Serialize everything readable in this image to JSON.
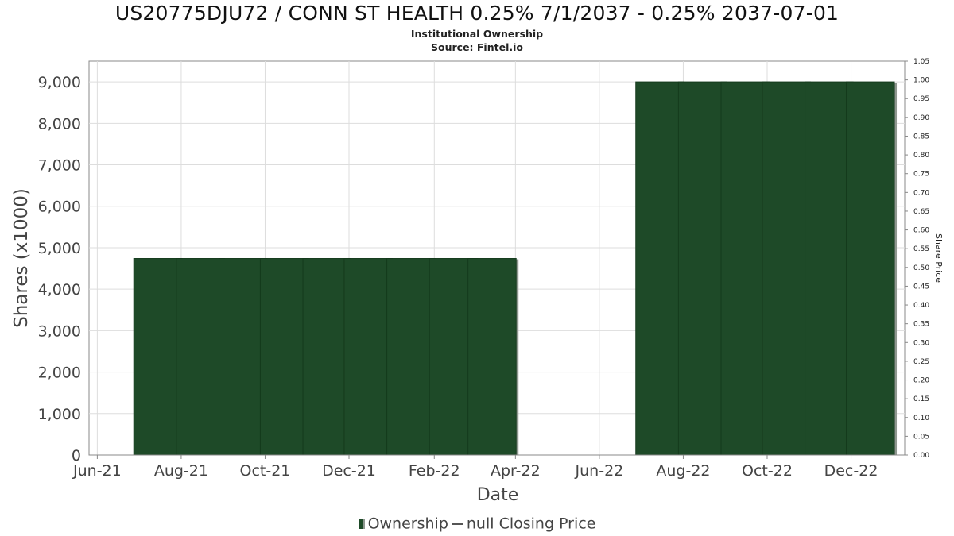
{
  "header": {
    "title": "US20775DJU72 / CONN ST HEALTH 0.25% 7/1/2037 - 0.25% 2037-07-01",
    "subtitle": "Institutional Ownership",
    "source": "Source: Fintel.io"
  },
  "legend": {
    "ownership": "Ownership",
    "price": "null Closing Price"
  },
  "colors": {
    "bar_fill": "#1e4a28",
    "bar_shadow": "#8f9890",
    "grid": "#dddddd",
    "axis": "#888888"
  },
  "chart_data": {
    "type": "bar",
    "xlabel": "Date",
    "ylabel": "Shares (x1000)",
    "y2label": "Share Price",
    "ylim": [
      0,
      9500
    ],
    "y2lim": [
      0,
      1.05
    ],
    "yticks": [
      0,
      1000,
      2000,
      3000,
      4000,
      5000,
      6000,
      7000,
      8000,
      9000
    ],
    "ytick_labels": [
      "0",
      "1,000",
      "2,000",
      "3,000",
      "4,000",
      "5,000",
      "6,000",
      "7,000",
      "8,000",
      "9,000"
    ],
    "y2ticks": [
      "0.00",
      "0.05",
      "0.10",
      "0.15",
      "0.20",
      "0.25",
      "0.30",
      "0.35",
      "0.40",
      "0.45",
      "0.50",
      "0.55",
      "0.60",
      "0.65",
      "0.70",
      "0.75",
      "0.80",
      "0.85",
      "0.90",
      "0.95",
      "1.00",
      "1.05"
    ],
    "xlim": [
      "2021-05-26",
      "2023-01-09"
    ],
    "xticks": [
      {
        "date": "2021-06-01",
        "label": "Jun-21"
      },
      {
        "date": "2021-08-01",
        "label": "Aug-21"
      },
      {
        "date": "2021-10-01",
        "label": "Oct-21"
      },
      {
        "date": "2021-12-01",
        "label": "Dec-21"
      },
      {
        "date": "2022-02-01",
        "label": "Feb-22"
      },
      {
        "date": "2022-04-01",
        "label": "Apr-22"
      },
      {
        "date": "2022-06-01",
        "label": "Jun-22"
      },
      {
        "date": "2022-08-01",
        "label": "Aug-22"
      },
      {
        "date": "2022-10-01",
        "label": "Oct-22"
      },
      {
        "date": "2022-12-01",
        "label": "Dec-22"
      }
    ],
    "grid": true,
    "legend_position": "bottom-center",
    "series": [
      {
        "name": "Ownership",
        "points": [
          {
            "date": "2021-07-15",
            "value": 4740
          },
          {
            "date": "2021-08-15",
            "value": 4740
          },
          {
            "date": "2021-09-15",
            "value": 4740
          },
          {
            "date": "2021-10-15",
            "value": 4740
          },
          {
            "date": "2021-11-15",
            "value": 4740
          },
          {
            "date": "2021-12-15",
            "value": 4740
          },
          {
            "date": "2022-01-15",
            "value": 4740
          },
          {
            "date": "2022-02-15",
            "value": 4740
          },
          {
            "date": "2022-03-15",
            "value": 4740
          },
          {
            "date": "2022-07-15",
            "value": 9000
          },
          {
            "date": "2022-08-15",
            "value": 9000
          },
          {
            "date": "2022-09-15",
            "value": 9000
          },
          {
            "date": "2022-10-15",
            "value": 9000
          },
          {
            "date": "2022-11-15",
            "value": 9000
          },
          {
            "date": "2022-12-15",
            "value": 9000
          }
        ]
      },
      {
        "name": "null Closing Price",
        "points": []
      }
    ]
  }
}
